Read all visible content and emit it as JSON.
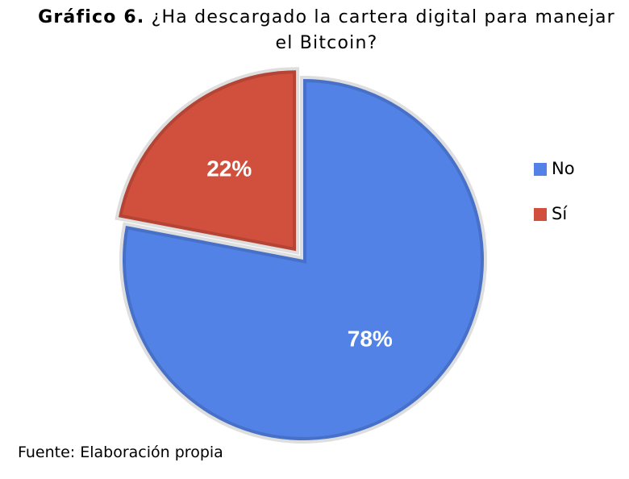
{
  "chart_data": {
    "type": "pie",
    "title_label": "Gráfico 6.",
    "title": "¿Ha descargado la cartera digital para manejar el Bitcoin?",
    "categories": [
      "No",
      "Sí"
    ],
    "values": [
      78,
      22
    ],
    "value_labels": [
      "78%",
      "22%"
    ],
    "colors": [
      "#5282e6",
      "#d04f3d"
    ],
    "exploded": [
      false,
      true
    ],
    "legend": "right",
    "source": "Fuente: Elaboración propia"
  }
}
